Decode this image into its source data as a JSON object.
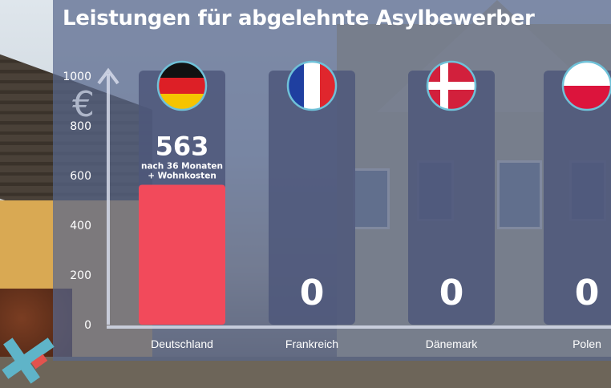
{
  "colors": {
    "overlay": "#58668c",
    "column_bg": "#4d577a",
    "bar_highlight": "#f24a5b",
    "axis": "#d6dbea",
    "text": "#ffffff"
  },
  "header": {
    "title": "Leistungen für abgelehnte Asylbewerber"
  },
  "chart_data": {
    "type": "bar",
    "title": "Leistungen für abgelehnte Asylbewerber",
    "ylabel_icon": "€",
    "ylim": [
      0,
      1000
    ],
    "yticks": [
      0,
      200,
      400,
      600,
      800,
      1000
    ],
    "categories": [
      "Deutschland",
      "Frankreich",
      "Dänemark",
      "Polen"
    ],
    "values": [
      563,
      0,
      0,
      0
    ],
    "value_labels": [
      "563",
      "0",
      "0",
      "0"
    ],
    "flags": [
      "germany-flag",
      "france-flag",
      "denmark-flag",
      "poland-flag"
    ],
    "annotations": [
      {
        "category": "Deutschland",
        "lines": [
          "nach 36 Monaten",
          "+ Wohnkosten"
        ]
      }
    ],
    "grid": false,
    "legend": "none"
  }
}
